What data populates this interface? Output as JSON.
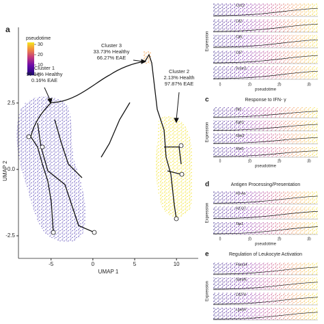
{
  "umap": {
    "panel_label": "a",
    "xlabel": "UMAP 1",
    "ylabel": "UMAP 2",
    "xlim": [
      -8.9,
      12.6
    ],
    "ylim": [
      -3.35,
      5.35
    ],
    "xticks": [
      -5,
      0,
      5,
      10
    ],
    "yticks": [
      2.5,
      {
        "value": 0,
        "label": "0.0"
      },
      -2.5
    ],
    "legend": {
      "title": "pseudotime",
      "lim": [
        0,
        32
      ],
      "ticks": [
        0,
        10,
        20,
        30
      ]
    },
    "annotations": [
      {
        "lines": [
          "Cluster 1",
          "99.84% Healthy",
          "0.16% EAE"
        ]
      },
      {
        "lines": [
          "Cluster 3",
          "33.73% Healthy",
          "66.27% EAE"
        ]
      },
      {
        "lines": [
          "Cluster 2",
          "2.13% Health",
          "97.87% EAE"
        ]
      }
    ]
  },
  "strip_axis": {
    "xlim": [
      -2.3,
      33
    ],
    "xticks": [
      0,
      10,
      20,
      30
    ],
    "xlabel": "pseudotime",
    "ylabel": "Expression"
  },
  "panels": [
    {
      "genes": [
        "Ccl12",
        "Cd2",
        "Cd5",
        "Cd7",
        "Vcam1"
      ]
    },
    {
      "label": "c",
      "title": "Response to IFN- γ",
      "genes": [
        "Ifit3",
        "Egfr1",
        "Gbp2",
        "Stat1"
      ]
    },
    {
      "label": "d",
      "title": "Antigen Processing/Presentation",
      "genes": [
        "H2-Aa",
        "H2-Q7",
        "Tap1"
      ]
    },
    {
      "label": "e",
      "title": "Regulation of Leukocyte Activation",
      "genes": [
        "Fasy14",
        "Slamf6",
        "Cd274",
        "Lgals9"
      ]
    }
  ]
}
